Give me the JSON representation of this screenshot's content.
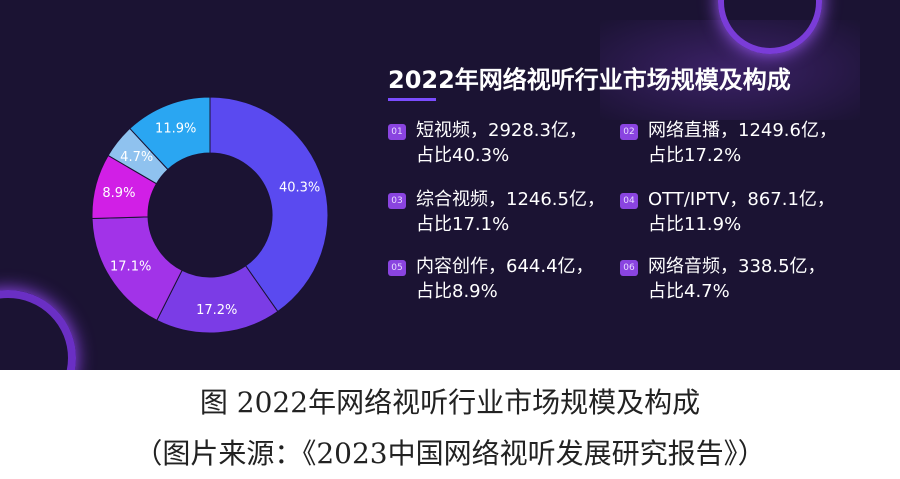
{
  "chart_data": {
    "type": "pie",
    "title": "2022年网络视听行业市场规模及构成",
    "slices": [
      {
        "label": "40.3%",
        "value": 40.3,
        "color": "#5a4af0"
      },
      {
        "label": "17.2%",
        "value": 17.2,
        "color": "#7b3ce6"
      },
      {
        "label": "17.1%",
        "value": 17.1,
        "color": "#a233e8"
      },
      {
        "label": "8.9%",
        "value": 8.9,
        "color": "#d11fe6"
      },
      {
        "label": "4.7%",
        "value": 4.7,
        "color": "#8fc2ef"
      },
      {
        "label": "11.9%",
        "value": 11.9,
        "color": "#2aa6f2"
      }
    ],
    "legend": [
      {
        "num": "01",
        "line1": "短视频，2928.3亿，",
        "line2": "占比40.3%"
      },
      {
        "num": "02",
        "line1": "网络直播，1249.6亿，",
        "line2": "占比17.2%"
      },
      {
        "num": "03",
        "line1": "综合视频，1246.5亿，",
        "line2": "占比17.1%"
      },
      {
        "num": "04",
        "line1": "OTT/IPTV，867.1亿，",
        "line2": "占比11.9%"
      },
      {
        "num": "05",
        "line1": "内容创作，644.4亿，",
        "line2": "占比8.9%"
      },
      {
        "num": "06",
        "line1": "网络音频，338.5亿，",
        "line2": "占比4.7%"
      }
    ]
  },
  "caption": {
    "line1": "图 2022年网络视听行业市场规模及构成",
    "line2": "（图片来源：《2023中国网络视听发展研究报告》）"
  }
}
